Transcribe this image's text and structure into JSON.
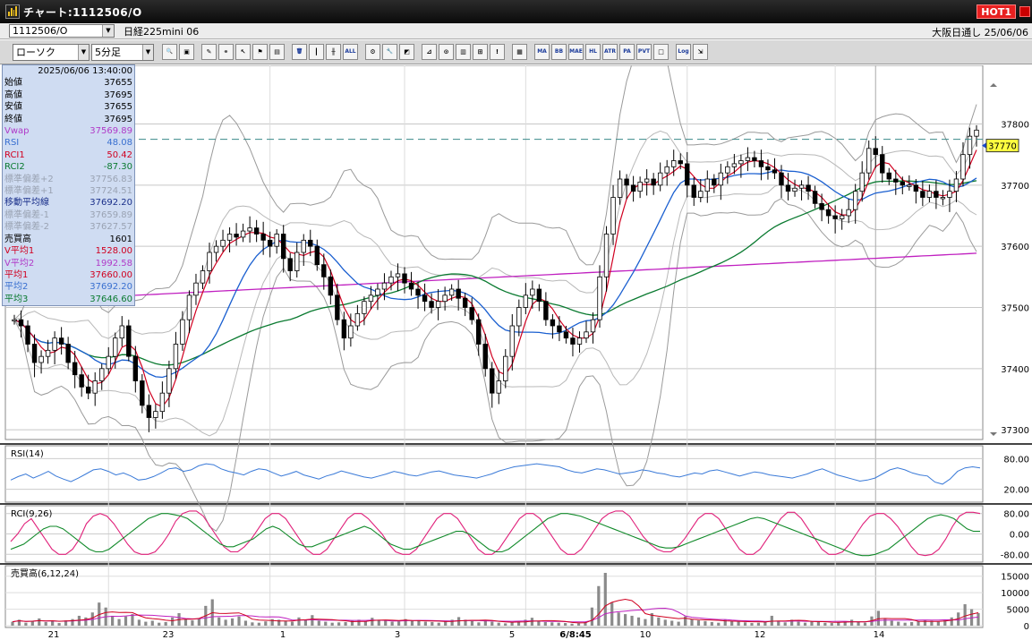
{
  "window": {
    "title": "チャート:1112506/O",
    "hot_badge": "HOT1"
  },
  "infobar": {
    "code": "1112506/O",
    "instrument": "日経225mini 06",
    "market_date": "大阪日通し 25/06/06"
  },
  "toolbar": {
    "chart_type": "ローソク",
    "interval": "5分足",
    "buttons": [
      {
        "name": "zoom-icon",
        "glyph": "🔍"
      },
      {
        "name": "window-icon",
        "glyph": "▣"
      },
      {
        "name": "pen-icon",
        "glyph": "✎"
      },
      {
        "name": "link-icon",
        "glyph": "⚭"
      },
      {
        "name": "cursor-icon",
        "glyph": "↖"
      },
      {
        "name": "flag-icon",
        "glyph": "⚑"
      },
      {
        "name": "document-icon",
        "glyph": "▤"
      },
      {
        "name": "trash-icon",
        "glyph": "🗑"
      },
      {
        "name": "candle-icon",
        "glyph": "┃"
      },
      {
        "name": "bars-icon",
        "glyph": "╫"
      },
      {
        "name": "all-icon",
        "glyph": "ALL"
      },
      {
        "name": "gear-icon",
        "glyph": "⚙"
      },
      {
        "name": "wrench-icon",
        "glyph": "🔧"
      },
      {
        "name": "palette-icon",
        "glyph": "◩"
      },
      {
        "name": "tick-chart-icon",
        "glyph": "⊿"
      },
      {
        "name": "magnifier-chart-icon",
        "glyph": "⊙"
      },
      {
        "name": "bar-chart-icon",
        "glyph": "▥"
      },
      {
        "name": "split-chart-icon",
        "glyph": "⊞"
      },
      {
        "name": "info-icon",
        "glyph": "!"
      },
      {
        "name": "grid-icon",
        "glyph": "▦"
      },
      {
        "name": "ma-icon",
        "glyph": "MA"
      },
      {
        "name": "bb-icon",
        "glyph": "BB"
      },
      {
        "name": "mae-icon",
        "glyph": "MAE"
      },
      {
        "name": "hl-icon",
        "glyph": "HL"
      },
      {
        "name": "atr-icon",
        "glyph": "ATR"
      },
      {
        "name": "para-icon",
        "glyph": "PA"
      },
      {
        "name": "pvt-icon",
        "glyph": "PVT"
      },
      {
        "name": "square-icon",
        "glyph": "□"
      },
      {
        "name": "log-icon",
        "glyph": "Log"
      },
      {
        "name": "export-icon",
        "glyph": "⇲"
      }
    ]
  },
  "data_panel": {
    "datetime": "2025/06/06  13:40:00",
    "rows": [
      {
        "label": "始値",
        "value": "37655",
        "color": "black"
      },
      {
        "label": "高値",
        "value": "37695",
        "color": "black"
      },
      {
        "label": "安値",
        "value": "37655",
        "color": "black"
      },
      {
        "label": "終値",
        "value": "37695",
        "color": "black"
      },
      {
        "label": "Vwap",
        "value": "37569.89",
        "color": "violet"
      },
      {
        "label": "RSI",
        "value": "48.08",
        "color": "blue"
      },
      {
        "label": "RCI1",
        "value": "50.42",
        "color": "red"
      },
      {
        "label": "RCI2",
        "value": "-87.30",
        "color": "green"
      },
      {
        "label": "標準偏差+2",
        "value": "37756.83",
        "color": "gray"
      },
      {
        "label": "標準偏差+1",
        "value": "37724.51",
        "color": "gray"
      },
      {
        "label": "移動平均線",
        "value": "37692.20",
        "color": "navy"
      },
      {
        "label": "標準偏差-1",
        "value": "37659.89",
        "color": "gray"
      },
      {
        "label": "標準偏差-2",
        "value": "37627.57",
        "color": "gray"
      },
      {
        "label": "売買高",
        "value": "1601",
        "color": "black"
      },
      {
        "label": "V平均1",
        "value": "1528.00",
        "color": "red"
      },
      {
        "label": "V平均2",
        "value": "1992.58",
        "color": "violet"
      },
      {
        "label": "平均1",
        "value": "37660.00",
        "color": "red"
      },
      {
        "label": "平均2",
        "value": "37692.20",
        "color": "blue"
      },
      {
        "label": "平均3",
        "value": "37646.60",
        "color": "green"
      }
    ]
  },
  "chart_data": [
    {
      "type": "candlestick",
      "title": "",
      "ylim": [
        37290,
        37890
      ],
      "y_ticks": [
        "37800",
        "37700",
        "37600",
        "37500",
        "37400",
        "37300"
      ],
      "x_tick_labels": [
        "21",
        "23",
        "1",
        "3",
        "5",
        "6/8:45",
        "10",
        "12",
        "14"
      ],
      "current_price_label": "37770",
      "reference_line": 37775,
      "close_path": [
        37480,
        37470,
        37440,
        37410,
        37420,
        37430,
        37450,
        37440,
        37410,
        37390,
        37370,
        37360,
        37380,
        37400,
        37420,
        37450,
        37470,
        37420,
        37380,
        37340,
        37320,
        37330,
        37360,
        37400,
        37440,
        37480,
        37520,
        37540,
        37560,
        37590,
        37600,
        37610,
        37620,
        37615,
        37625,
        37630,
        37620,
        37610,
        37600,
        37620,
        37580,
        37560,
        37590,
        37610,
        37600,
        37570,
        37550,
        37520,
        37480,
        37450,
        37470,
        37490,
        37510,
        37520,
        37530,
        37540,
        37550,
        37555,
        37540,
        37530,
        37520,
        37510,
        37500,
        37510,
        37520,
        37530,
        37515,
        37500,
        37480,
        37440,
        37400,
        37360,
        37380,
        37420,
        37470,
        37500,
        37520,
        37530,
        37510,
        37480,
        37470,
        37460,
        37450,
        37440,
        37450,
        37460,
        37480,
        37550,
        37620,
        37680,
        37710,
        37700,
        37690,
        37705,
        37710,
        37700,
        37720,
        37730,
        37740,
        37735,
        37700,
        37680,
        37690,
        37710,
        37700,
        37720,
        37730,
        37735,
        37740,
        37745,
        37740,
        37730,
        37725,
        37720,
        37700,
        37690,
        37695,
        37700,
        37690,
        37670,
        37660,
        37650,
        37645,
        37650,
        37660,
        37690,
        37720,
        37760,
        37750,
        37720,
        37710,
        37705,
        37700,
        37700,
        37690,
        37680,
        37690,
        37680,
        37680,
        37690,
        37710,
        37750,
        37780,
        37790
      ],
      "series": [
        {
          "name": "移動平均線",
          "color": "#1a5fd0"
        },
        {
          "name": "平均1",
          "color": "#d00020"
        },
        {
          "name": "平均3",
          "color": "#0a7a30"
        },
        {
          "name": "Vwap",
          "color": "#c020c0"
        }
      ]
    },
    {
      "type": "line",
      "title": "RSI(14)",
      "ylim": [
        0,
        100
      ],
      "y_ticks": [
        "80.00",
        "20.00"
      ],
      "series": [
        {
          "name": "RSI",
          "color": "#3a7ad8",
          "values": [
            38,
            45,
            50,
            42,
            48,
            55,
            46,
            40,
            35,
            42,
            50,
            58,
            60,
            55,
            48,
            52,
            46,
            38,
            40,
            45,
            52,
            60,
            62,
            55,
            58,
            66,
            70,
            68,
            60,
            55,
            52,
            48,
            55,
            60,
            58,
            52,
            46,
            50,
            55,
            48,
            44,
            40,
            46,
            50,
            56,
            52,
            48,
            44,
            42,
            46,
            50,
            55,
            52,
            48,
            46,
            50,
            54,
            56,
            52,
            48,
            46,
            44,
            42,
            46,
            50,
            56,
            60,
            64,
            66,
            68,
            70,
            68,
            66,
            64,
            58,
            54,
            52,
            56,
            60,
            58,
            54,
            50,
            52,
            54,
            58,
            56,
            52,
            50,
            46,
            44,
            48,
            52,
            50,
            56,
            58,
            54,
            50,
            46,
            50,
            54,
            52,
            48,
            46,
            44,
            42,
            46,
            50,
            56,
            60,
            54,
            48,
            44,
            40,
            36,
            38,
            42,
            50,
            58,
            62,
            58,
            52,
            48,
            46,
            34,
            30,
            40,
            55,
            62,
            64,
            62
          ]
        }
      ]
    },
    {
      "type": "line",
      "title": "RCI(9,26)",
      "ylim": [
        -100,
        100
      ],
      "y_ticks": [
        "80.00",
        "0.00",
        "-80.00"
      ],
      "series": [
        {
          "name": "RCI1",
          "color": "#e0207a",
          "values": [
            -30,
            0,
            40,
            60,
            20,
            -20,
            -60,
            -80,
            -80,
            -60,
            -20,
            40,
            70,
            80,
            70,
            40,
            0,
            -40,
            -70,
            -80,
            -80,
            -70,
            -40,
            0,
            50,
            80,
            90,
            90,
            70,
            30,
            -10,
            -50,
            -70,
            -70,
            -50,
            -20,
            20,
            60,
            80,
            80,
            60,
            20,
            -20,
            -60,
            -80,
            -80,
            -60,
            -20,
            20,
            60,
            80,
            80,
            60,
            30,
            0,
            -40,
            -70,
            -80,
            -80,
            -60,
            -20,
            20,
            60,
            80,
            80,
            60,
            20,
            -20,
            -60,
            -80,
            -80,
            -60,
            -20,
            20,
            60,
            80,
            80,
            60,
            20,
            -20,
            -60,
            -80,
            -80,
            -60,
            -20,
            20,
            60,
            80,
            90,
            90,
            70,
            30,
            -10,
            -40,
            -60,
            -70,
            -70,
            -50,
            -20,
            20,
            60,
            80,
            80,
            60,
            20,
            -20,
            -60,
            -80,
            -80,
            -60,
            -20,
            20,
            60,
            85,
            85,
            60,
            20,
            -20,
            -60,
            -80,
            -80,
            -70,
            -40,
            0,
            40,
            70,
            80,
            80,
            60,
            30,
            -10,
            -50,
            -80,
            -85,
            -80,
            -60,
            -20,
            30,
            70,
            85,
            85,
            80
          ]
        },
        {
          "name": "RCI2",
          "color": "#118a2a",
          "values": [
            -60,
            -50,
            -40,
            -20,
            0,
            20,
            30,
            30,
            20,
            0,
            -20,
            -40,
            -60,
            -70,
            -70,
            -60,
            -40,
            -20,
            0,
            20,
            40,
            60,
            70,
            80,
            80,
            75,
            70,
            60,
            40,
            20,
            0,
            -20,
            -40,
            -50,
            -50,
            -40,
            -30,
            -20,
            0,
            20,
            30,
            20,
            0,
            -20,
            -40,
            -50,
            -50,
            -40,
            -30,
            -20,
            -10,
            0,
            10,
            20,
            30,
            20,
            0,
            -20,
            -40,
            -50,
            -60,
            -60,
            -50,
            -40,
            -30,
            -20,
            -10,
            0,
            10,
            10,
            0,
            -20,
            -40,
            -60,
            -70,
            -70,
            -60,
            -40,
            -20,
            0,
            20,
            40,
            60,
            70,
            80,
            80,
            75,
            70,
            60,
            50,
            40,
            30,
            20,
            10,
            0,
            -10,
            -20,
            -30,
            -40,
            -50,
            -55,
            -55,
            -50,
            -40,
            -30,
            -20,
            -10,
            0,
            10,
            20,
            30,
            40,
            50,
            60,
            65,
            60,
            50,
            40,
            30,
            20,
            10,
            0,
            -10,
            -20,
            -30,
            -40,
            -50,
            -60,
            -70,
            -80,
            -85,
            -85,
            -80,
            -70,
            -60,
            -40,
            -20,
            0,
            20,
            40,
            60,
            70,
            75,
            70,
            60,
            40,
            20,
            10,
            10
          ]
        }
      ]
    },
    {
      "type": "bar",
      "title": "売買高(6,12,24)",
      "ylim": [
        0,
        16000
      ],
      "y_ticks": [
        "15000",
        "10000",
        "5000",
        "0"
      ],
      "values": [
        1200,
        1800,
        900,
        1500,
        2200,
        1100,
        1400,
        800,
        1600,
        2000,
        3000,
        2500,
        4000,
        7000,
        5500,
        3000,
        2000,
        2800,
        3500,
        1800,
        1200,
        1500,
        900,
        1100,
        2500,
        3800,
        2000,
        1600,
        2200,
        6000,
        8000,
        2500,
        1800,
        2200,
        2800,
        1500,
        1000,
        900,
        1300,
        2000,
        1800,
        1500,
        1200,
        2500,
        1800,
        3200,
        1500,
        1200,
        900,
        1000,
        1100,
        1600,
        1800,
        1300,
        2400,
        1800,
        1500,
        1200,
        1300,
        2000,
        1500,
        1600,
        1200,
        1100,
        900,
        1200,
        1800,
        2600,
        1800,
        1400,
        1000,
        1600,
        1200,
        900,
        700,
        1000,
        1300,
        1800,
        2400,
        1500,
        1100,
        1000,
        900,
        800,
        600,
        700,
        1200,
        5500,
        12000,
        16000,
        7000,
        4000,
        3500,
        3000,
        2500,
        2000,
        3800,
        2500,
        1800,
        1500,
        1200,
        2800,
        2000,
        1600,
        1400,
        1100,
        900,
        1800,
        1500,
        1200,
        1000,
        800,
        900,
        1200,
        3000,
        1500,
        1000,
        1800,
        1200,
        900,
        1400,
        1100,
        900,
        800,
        1000,
        1300,
        1800,
        1200,
        900,
        2800,
        4500,
        2000,
        1500,
        1200,
        900,
        1100,
        1300,
        1600,
        1500,
        1200,
        1800,
        2500,
        4000,
        6500,
        5000,
        3800
      ]
    }
  ]
}
